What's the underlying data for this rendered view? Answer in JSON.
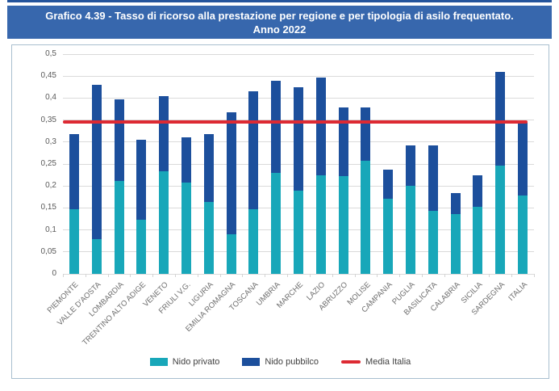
{
  "header": {
    "title_line1": "Grafico 4.39 - Tasso di ricorso alla prestazione per regione e per tipologia di asilo frequentato.",
    "title_line2": "Anno 2022"
  },
  "colors": {
    "banner_blue": "#3767ad",
    "top_accent": "#24549c",
    "panel_border": "#a9bfcf",
    "gridline": "#dadada"
  },
  "chart_data": {
    "type": "bar",
    "stacked": true,
    "title": "Tasso di ricorso alla prestazione per regione e per tipologia di asilo frequentato - Anno 2022",
    "categories": [
      "PIEMONTE",
      "VALLE D'AOSTA",
      "LOMBARDIA",
      "TRENTINO ALTO ADIGE",
      "VENETO",
      "FRIULI V.G.",
      "LIGURIA",
      "EMILIA ROMAGNA",
      "TOSCANA",
      "UMBRIA",
      "MARCHE",
      "LAZIO",
      "ABRUZZO",
      "MOLISE",
      "CAMPANIA",
      "PUGLIA",
      "BASILICATA",
      "CALABRIA",
      "SICILIA",
      "SARDEGNA",
      "ITALIA"
    ],
    "series": [
      {
        "name": "Nido privato",
        "color": "#18a7b9",
        "values": [
          0.148,
          0.079,
          0.211,
          0.124,
          0.234,
          0.208,
          0.164,
          0.091,
          0.147,
          0.23,
          0.19,
          0.224,
          0.222,
          0.257,
          0.171,
          0.201,
          0.143,
          0.136,
          0.153,
          0.246,
          0.179
        ]
      },
      {
        "name": "Nido pubbilco",
        "color": "#1c4f9c",
        "values": [
          0.17,
          0.352,
          0.186,
          0.181,
          0.17,
          0.103,
          0.154,
          0.276,
          0.268,
          0.21,
          0.235,
          0.223,
          0.156,
          0.122,
          0.067,
          0.091,
          0.15,
          0.048,
          0.072,
          0.214,
          0.164
        ]
      }
    ],
    "totals": [
      0.318,
      0.431,
      0.397,
      0.305,
      0.404,
      0.311,
      0.318,
      0.367,
      0.415,
      0.44,
      0.425,
      0.447,
      0.378,
      0.379,
      0.238,
      0.292,
      0.293,
      0.184,
      0.225,
      0.46,
      0.343
    ],
    "reference_line": {
      "name": "Media Italia",
      "value": 0.345,
      "color": "#dd2a33"
    },
    "xlabel": "",
    "ylabel": "",
    "ylim": [
      0,
      0.5
    ],
    "ytick_step": 0.05,
    "ytick_labels": [
      "0",
      "0,05",
      "0,1",
      "0,15",
      "0,2",
      "0,25",
      "0,3",
      "0,35",
      "0,4",
      "0,45",
      "0,5"
    ],
    "grid": true,
    "legend_position": "bottom"
  }
}
